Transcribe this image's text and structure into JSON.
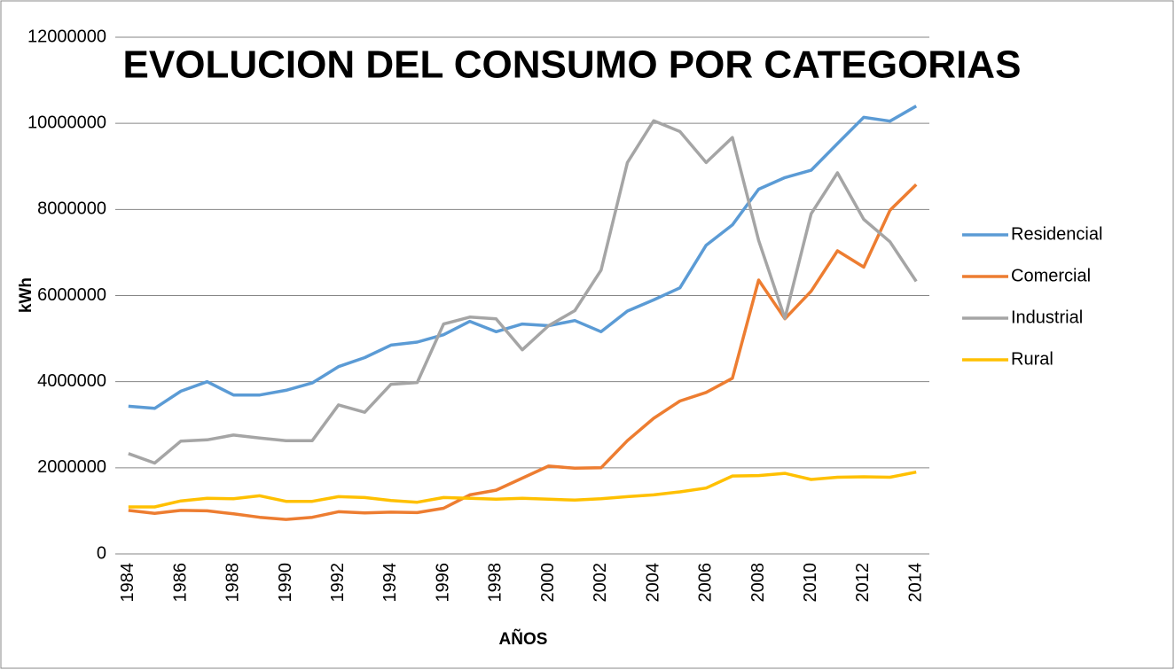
{
  "chart_data": {
    "type": "line",
    "title": "EVOLUCION DEL CONSUMO POR CATEGORIAS",
    "x_label": "AÑOS",
    "y_label": "kWh",
    "categories": [
      "1984",
      null,
      "1986",
      null,
      "1988",
      null,
      "1990",
      null,
      "1992",
      null,
      "1994",
      null,
      "1996",
      null,
      "1998",
      null,
      "2000",
      null,
      "2002",
      null,
      "2004",
      null,
      "2006",
      null,
      "2008",
      null,
      "2010",
      null,
      "2012",
      null,
      "2014"
    ],
    "ylim": [
      0,
      12000000
    ],
    "yticks": [
      0,
      2000000,
      4000000,
      6000000,
      8000000,
      10000000,
      12000000
    ],
    "grid": true,
    "legend": "right",
    "series": [
      {
        "name": "Residencial",
        "color": "#5b9bd5",
        "values": [
          3430000,
          3380000,
          3780000,
          4000000,
          3690000,
          3690000,
          3800000,
          3970000,
          4350000,
          4560000,
          4850000,
          4920000,
          5090000,
          5400000,
          5160000,
          5340000,
          5300000,
          5420000,
          5160000,
          5640000,
          5900000,
          6180000,
          7170000,
          7640000,
          8470000,
          8740000,
          8910000,
          9530000,
          10140000,
          10050000,
          10400000
        ]
      },
      {
        "name": "Comercial",
        "color": "#ed7d31",
        "values": [
          1010000,
          940000,
          1010000,
          1000000,
          930000,
          850000,
          800000,
          850000,
          980000,
          950000,
          970000,
          960000,
          1060000,
          1370000,
          1480000,
          1760000,
          2040000,
          1990000,
          2000000,
          2630000,
          3150000,
          3550000,
          3750000,
          4080000,
          6360000,
          5460000,
          6100000,
          7040000,
          6660000,
          7980000,
          8580000
        ]
      },
      {
        "name": "Industrial",
        "color": "#a5a5a5",
        "values": [
          2330000,
          2110000,
          2620000,
          2650000,
          2760000,
          2690000,
          2630000,
          2630000,
          3460000,
          3290000,
          3940000,
          3980000,
          5340000,
          5500000,
          5460000,
          4740000,
          5300000,
          5650000,
          6590000,
          9090000,
          10060000,
          9810000,
          9090000,
          9670000,
          7280000,
          5470000,
          7900000,
          8850000,
          7770000,
          7250000,
          6330000
        ]
      },
      {
        "name": "Rural",
        "color": "#ffc000",
        "values": [
          1090000,
          1090000,
          1230000,
          1290000,
          1280000,
          1350000,
          1220000,
          1220000,
          1330000,
          1310000,
          1240000,
          1200000,
          1310000,
          1290000,
          1270000,
          1290000,
          1270000,
          1250000,
          1280000,
          1330000,
          1370000,
          1440000,
          1530000,
          1810000,
          1820000,
          1870000,
          1730000,
          1780000,
          1790000,
          1780000,
          1900000
        ]
      }
    ]
  }
}
